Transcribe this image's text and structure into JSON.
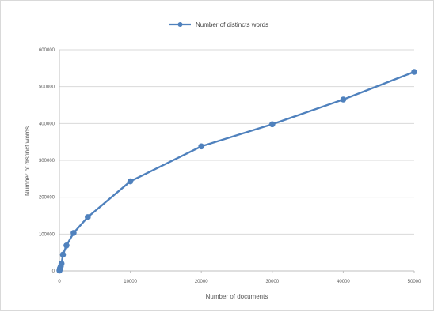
{
  "chart_data": {
    "type": "line",
    "title": "",
    "xlabel": "Number of documents",
    "ylabel": "Number of distinct words",
    "xlim": [
      0,
      50000
    ],
    "ylim": [
      0,
      600000
    ],
    "x_ticks": [
      "0",
      "10000",
      "20000",
      "30000",
      "40000",
      "50000"
    ],
    "y_ticks": [
      "0",
      "100000",
      "200000",
      "300000",
      "400000",
      "500000",
      "600000"
    ],
    "grid": "horizontal",
    "legend_position": "top",
    "series": [
      {
        "name": "Number of distincts words",
        "color": "#4f81bd",
        "marker": "circle",
        "points": [
          {
            "x": 10,
            "y": 1000
          },
          {
            "x": 25,
            "y": 2500
          },
          {
            "x": 50,
            "y": 5000
          },
          {
            "x": 100,
            "y": 8000
          },
          {
            "x": 200,
            "y": 13000
          },
          {
            "x": 300,
            "y": 20000
          },
          {
            "x": 500,
            "y": 44000
          },
          {
            "x": 1000,
            "y": 69000
          },
          {
            "x": 2000,
            "y": 103000
          },
          {
            "x": 4000,
            "y": 146000
          },
          {
            "x": 10000,
            "y": 243000
          },
          {
            "x": 20000,
            "y": 338000
          },
          {
            "x": 30000,
            "y": 398000
          },
          {
            "x": 40000,
            "y": 465000
          },
          {
            "x": 50000,
            "y": 540000
          }
        ]
      }
    ]
  }
}
